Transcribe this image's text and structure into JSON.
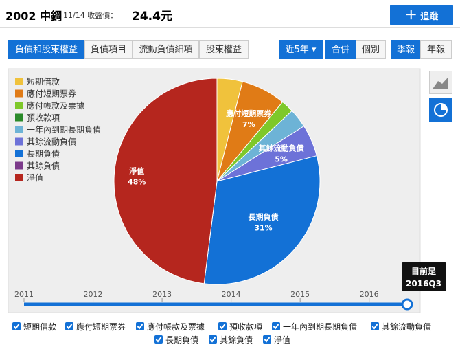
{
  "header": {
    "stock": "2002 中鋼",
    "date_label": "11/14 收盤價：",
    "price": "24.4元",
    "follow_button": "追蹤"
  },
  "tabs": [
    "負債和股東權益",
    "負債項目",
    "流動負債細項",
    "股東權益"
  ],
  "controls": {
    "period": "近5年",
    "consolidated": "合併",
    "individual": "個別",
    "quarterly": "季報",
    "annual": "年報"
  },
  "chart_data": {
    "type": "pie",
    "categories": [
      "短期借款",
      "應付短期票券",
      "應付帳款及票據",
      "預收款項",
      "一年內到期長期負債",
      "其餘流動負債",
      "長期負債",
      "其餘負債",
      "淨值"
    ],
    "values": [
      4,
      7,
      2,
      0,
      3,
      5,
      31,
      0,
      48
    ],
    "value_labels": [
      null,
      "7%",
      null,
      null,
      null,
      "5%",
      "31%",
      null,
      "48%"
    ],
    "colors": [
      "#f0c23c",
      "#e07b16",
      "#7ec82a",
      "#2a8a2a",
      "#6db3d6",
      "#6d72d8",
      "#1371d6",
      "#7b3a8a",
      "#b5261e"
    ]
  },
  "timeline": {
    "xlim": [
      2011,
      2016.55
    ],
    "xticks": [
      2011,
      2012,
      2013,
      2014,
      2015,
      2016
    ],
    "tooltip": [
      "目前是",
      "2016Q3"
    ]
  }
}
